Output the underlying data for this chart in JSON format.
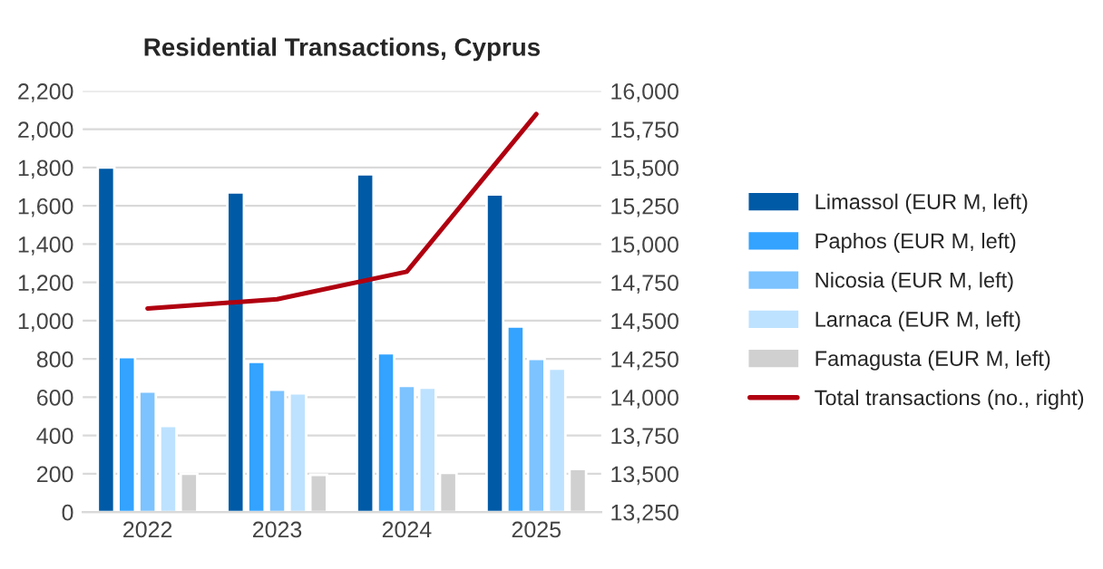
{
  "chart_data": {
    "type": "bar",
    "title": "Residential Transactions, Cyprus",
    "categories": [
      "2022",
      "2023",
      "2024",
      "2025"
    ],
    "series": [
      {
        "name": "Limassol (EUR M, left)",
        "color": "#005aa6",
        "values": [
          1800,
          1670,
          1765,
          1660
        ]
      },
      {
        "name": "Paphos (EUR M, left)",
        "color": "#33a3ff",
        "values": [
          810,
          785,
          830,
          970
        ]
      },
      {
        "name": "Nicosia (EUR M, left)",
        "color": "#7cc3ff",
        "values": [
          630,
          640,
          660,
          800
        ]
      },
      {
        "name": "Larnaca (EUR M, left)",
        "color": "#bde2ff",
        "values": [
          450,
          620,
          650,
          750
        ]
      },
      {
        "name": "Famagusta (EUR M, left)",
        "color": "#d0d0d0",
        "values": [
          200,
          195,
          205,
          225
        ]
      },
      {
        "name": "Total transactions (no., right)",
        "type": "line",
        "axis": "y2",
        "color": "#b00010",
        "values": [
          14580,
          14640,
          14820,
          15850
        ]
      }
    ],
    "ylim": [
      0,
      2200
    ],
    "yticks": [
      {
        "value": 0,
        "label": "0"
      },
      {
        "value": 200,
        "label": "200"
      },
      {
        "value": 400,
        "label": "400"
      },
      {
        "value": 600,
        "label": "600"
      },
      {
        "value": 800,
        "label": "800"
      },
      {
        "value": 1000,
        "label": "1,000"
      },
      {
        "value": 1200,
        "label": "1,200"
      },
      {
        "value": 1400,
        "label": "1,400"
      },
      {
        "value": 1600,
        "label": "1,600"
      },
      {
        "value": 1800,
        "label": "1,800"
      },
      {
        "value": 2000,
        "label": "2,000"
      },
      {
        "value": 2200,
        "label": "2,200"
      }
    ],
    "y2lim": [
      13250,
      16000
    ],
    "y2ticks": [
      {
        "value": 13250,
        "label": "13,250"
      },
      {
        "value": 13500,
        "label": "13,500"
      },
      {
        "value": 13750,
        "label": "13,750"
      },
      {
        "value": 14000,
        "label": "14,000"
      },
      {
        "value": 14250,
        "label": "14,250"
      },
      {
        "value": 14500,
        "label": "14,500"
      },
      {
        "value": 14750,
        "label": "14,750"
      },
      {
        "value": 15000,
        "label": "15,000"
      },
      {
        "value": 15250,
        "label": "15,250"
      },
      {
        "value": 15500,
        "label": "15,500"
      },
      {
        "value": 15750,
        "label": "15,750"
      },
      {
        "value": 16000,
        "label": "16,000"
      }
    ],
    "grid": "y",
    "legend": "right",
    "marker": "none",
    "line_style": "solid"
  }
}
